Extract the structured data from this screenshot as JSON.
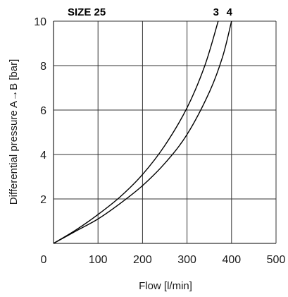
{
  "chart_data": {
    "type": "line",
    "title": "SIZE 25",
    "xlabel": "Flow [l/min]",
    "ylabel": "Differential pressure A→B [bar]",
    "xlim": [
      0,
      500
    ],
    "ylim": [
      0,
      10
    ],
    "xticks": [
      0,
      100,
      200,
      300,
      400,
      500
    ],
    "yticks": [
      2,
      4,
      6,
      8,
      10
    ],
    "grid": true,
    "legend": "top",
    "colors": {
      "line": "#000000",
      "grid": "#333333",
      "text": "#1a1a1a"
    },
    "series": [
      {
        "name": "3",
        "x": [
          0,
          50,
          100,
          150,
          200,
          250,
          300,
          340,
          370
        ],
        "y": [
          0,
          0.6,
          1.3,
          2.1,
          3.1,
          4.4,
          6.1,
          8.0,
          10.0
        ]
      },
      {
        "name": "4",
        "x": [
          0,
          50,
          100,
          150,
          200,
          250,
          300,
          350,
          380,
          400
        ],
        "y": [
          0,
          0.55,
          1.1,
          1.8,
          2.6,
          3.6,
          4.9,
          6.8,
          8.4,
          10.0
        ]
      }
    ]
  }
}
